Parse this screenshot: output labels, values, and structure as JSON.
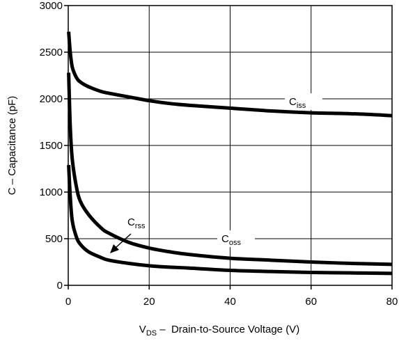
{
  "chart_data": {
    "type": "line",
    "title": "",
    "xlabel": {
      "main": "V",
      "sub": "DS",
      "rest": " –  Drain-to-Source Voltage (V)"
    },
    "ylabel": "C  –  Capacitance (pF)",
    "xlim": [
      0,
      80
    ],
    "ylim": [
      0,
      3000
    ],
    "x_ticks": [
      "0",
      "20",
      "40",
      "60",
      "80"
    ],
    "y_ticks": [
      "0",
      "500",
      "1000",
      "1500",
      "2000",
      "2500",
      "3000"
    ],
    "grid": true,
    "series": [
      {
        "name": "Ciss",
        "label_main": "C",
        "label_sub": "iss",
        "x": [
          0.1,
          0.5,
          1,
          2,
          3,
          5,
          8,
          10,
          15,
          20,
          25,
          30,
          40,
          50,
          60,
          70,
          80
        ],
        "values": [
          2720,
          2500,
          2340,
          2230,
          2180,
          2130,
          2080,
          2060,
          2020,
          1980,
          1950,
          1930,
          1900,
          1870,
          1850,
          1840,
          1820
        ]
      },
      {
        "name": "Coss",
        "label_main": "C",
        "label_sub": "oss",
        "x": [
          0.1,
          0.5,
          1,
          2,
          3,
          5,
          8,
          10,
          15,
          20,
          25,
          30,
          40,
          50,
          60,
          70,
          80
        ],
        "values": [
          2280,
          1700,
          1350,
          1060,
          900,
          760,
          620,
          560,
          460,
          400,
          360,
          330,
          290,
          270,
          250,
          235,
          225
        ]
      },
      {
        "name": "Crss",
        "label_main": "C",
        "label_sub": "rss",
        "x": [
          0.1,
          0.5,
          1,
          2,
          3,
          5,
          8,
          10,
          15,
          20,
          25,
          30,
          40,
          50,
          60,
          70,
          80
        ],
        "values": [
          1290,
          950,
          690,
          520,
          440,
          360,
          300,
          270,
          235,
          210,
          195,
          185,
          160,
          148,
          138,
          133,
          128
        ]
      }
    ]
  }
}
